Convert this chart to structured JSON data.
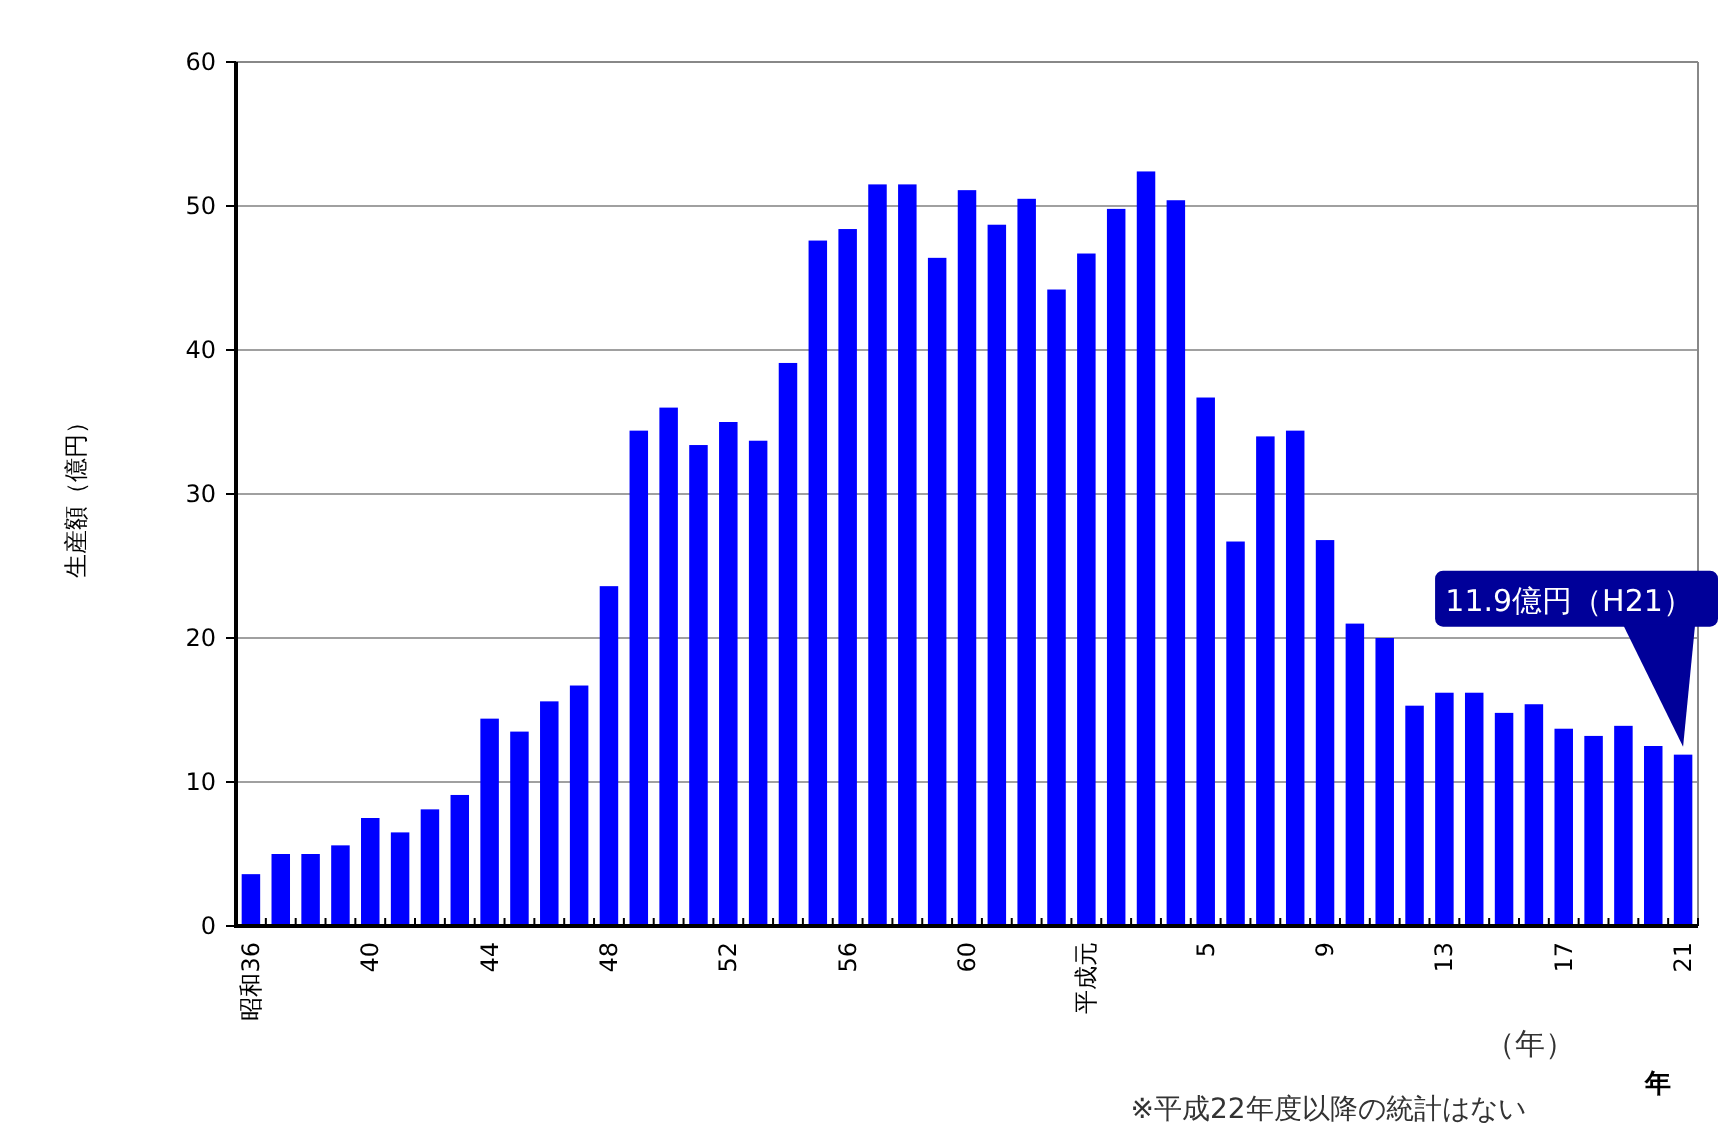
{
  "chart_data": {
    "type": "bar",
    "ylabel": "生産額（億円）",
    "xlabel": "（年）",
    "categories": [
      "昭和36",
      null,
      null,
      null,
      "40",
      null,
      null,
      null,
      "44",
      null,
      null,
      null,
      "48",
      null,
      null,
      null,
      "52",
      null,
      null,
      null,
      "56",
      null,
      null,
      null,
      "60",
      null,
      null,
      null,
      "平成元",
      null,
      null,
      null,
      "5",
      null,
      null,
      null,
      "9",
      null,
      null,
      null,
      "13",
      null,
      null,
      null,
      "17",
      null,
      null,
      null,
      "21"
    ],
    "values": [
      3.6,
      5.0,
      5.0,
      5.6,
      7.5,
      6.5,
      8.1,
      9.1,
      14.4,
      13.5,
      15.6,
      16.7,
      23.6,
      34.4,
      36.0,
      33.4,
      35.0,
      33.7,
      39.1,
      47.6,
      48.4,
      51.5,
      51.5,
      46.4,
      51.1,
      48.7,
      50.5,
      44.2,
      46.7,
      49.8,
      52.4,
      50.4,
      36.7,
      26.7,
      34.0,
      34.4,
      26.8,
      21.0,
      20.0,
      15.3,
      16.2,
      16.2,
      14.8,
      15.4,
      13.7,
      13.2,
      13.9,
      12.5,
      11.9
    ],
    "color": "#0000ff",
    "ylim": [
      0,
      60
    ],
    "yticks": [
      0,
      10,
      20,
      30,
      40,
      50,
      60
    ],
    "grid": "y",
    "annotations": [
      "11.9億円（H21）",
      "年",
      "※平成22年度以降の統計はない"
    ]
  }
}
